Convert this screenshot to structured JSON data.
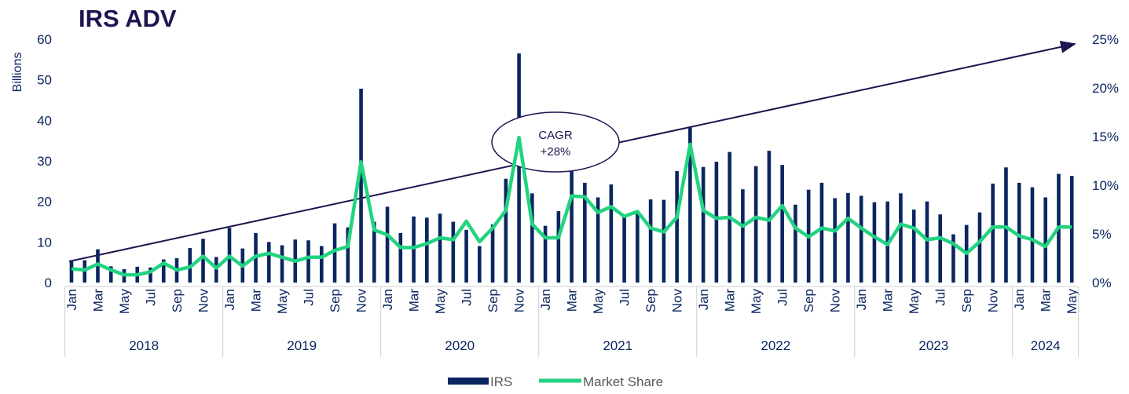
{
  "chart_data": {
    "type": "bar_line",
    "title": "IRS ADV",
    "y_label": "Billions",
    "annotation": [
      "CAGR",
      "+28%"
    ],
    "categories": [
      "Jan",
      null,
      "Mar",
      null,
      "May",
      null,
      "Jul",
      null,
      "Sep",
      null,
      "Nov",
      null,
      "Jan",
      null,
      "Mar",
      null,
      "May",
      null,
      "Jul",
      null,
      "Sep",
      null,
      "Nov",
      null,
      "Jan",
      null,
      "Mar",
      null,
      "May",
      null,
      "Jul",
      null,
      "Sep",
      null,
      "Nov",
      null,
      "Jan",
      null,
      "Mar",
      null,
      "May",
      null,
      "Jul",
      null,
      "Sep",
      null,
      "Nov",
      null,
      "Jan",
      null,
      "Mar",
      null,
      "May",
      null,
      "Jul",
      null,
      "Sep",
      null,
      "Nov",
      null,
      "Jan",
      null,
      "Mar",
      null,
      "May",
      null,
      "Jul",
      null,
      "Sep",
      null,
      "Nov",
      null,
      "Jan",
      null,
      "Mar",
      null,
      "May"
    ],
    "year_groups": [
      "2018",
      "2019",
      "2020",
      "2021",
      "2022",
      "2023",
      "2024"
    ],
    "series": [
      {
        "name": "IRS",
        "color": "#0b2560",
        "kind": "bar",
        "values": [
          5.2,
          5.5,
          8.2,
          4,
          3.3,
          3.9,
          3.7,
          5.7,
          6,
          8.5,
          10.8,
          6.3,
          13.5,
          8.4,
          12.2,
          10,
          9.2,
          10.6,
          10.4,
          9,
          14.6,
          13.6,
          47.8,
          15,
          18.7,
          12.2,
          16.3,
          16,
          17,
          15,
          13,
          9,
          14.3,
          25.6,
          56.5,
          22,
          14,
          17.6,
          29,
          24.6,
          21,
          24.2,
          16.8,
          17.5,
          20.5,
          20.4,
          27.5,
          38.2,
          28.5,
          29.8,
          32.2,
          23,
          28.7,
          32.5,
          29,
          19.2,
          22.9,
          24.6,
          20.8,
          22.1,
          21.4,
          19.8,
          20,
          22,
          18,
          20,
          16.8,
          11.9,
          14.2,
          17.3,
          24.4,
          28.4,
          24.6,
          23.5,
          21,
          26.8,
          26.3
        ]
      },
      {
        "name": "Market Share",
        "color": "#22d381",
        "kind": "line",
        "axis": "y2",
        "values": [
          1.4,
          1.3,
          1.9,
          1.3,
          0.8,
          0.8,
          1.1,
          2,
          1.3,
          1.6,
          2.7,
          1.5,
          2.7,
          1.7,
          2.7,
          3,
          2.6,
          2.2,
          2.6,
          2.6,
          3.3,
          3.7,
          12.4,
          5.4,
          4.9,
          3.6,
          3.6,
          4,
          4.6,
          4.4,
          6.3,
          4.2,
          5.6,
          7.4,
          14.9,
          6,
          4.6,
          4.6,
          8.9,
          8.8,
          7.2,
          7.8,
          6.8,
          7.3,
          5.6,
          5.2,
          6.7,
          14.2,
          7.4,
          6.6,
          6.7,
          5.8,
          6.7,
          6.4,
          7.9,
          5.6,
          4.7,
          5.6,
          5.3,
          6.6,
          5.6,
          4.7,
          3.9,
          6,
          5.6,
          4.4,
          4.6,
          4,
          3,
          4.2,
          5.7,
          5.7,
          4.8,
          4.4,
          3.7,
          5.7,
          5.7
        ]
      }
    ],
    "ylim": [
      0,
      60
    ],
    "yticks": [
      0,
      10,
      20,
      30,
      40,
      50,
      60
    ],
    "y2lim": [
      0,
      25
    ],
    "y2ticks": [
      {
        "value": 0,
        "label": "0%"
      },
      {
        "value": 5,
        "label": "5%"
      },
      {
        "value": 10,
        "label": "10%"
      },
      {
        "value": 15,
        "label": "15%"
      },
      {
        "value": 20,
        "label": "20%"
      },
      {
        "value": 25,
        "label": "25%"
      }
    ],
    "legend": "bottom"
  }
}
